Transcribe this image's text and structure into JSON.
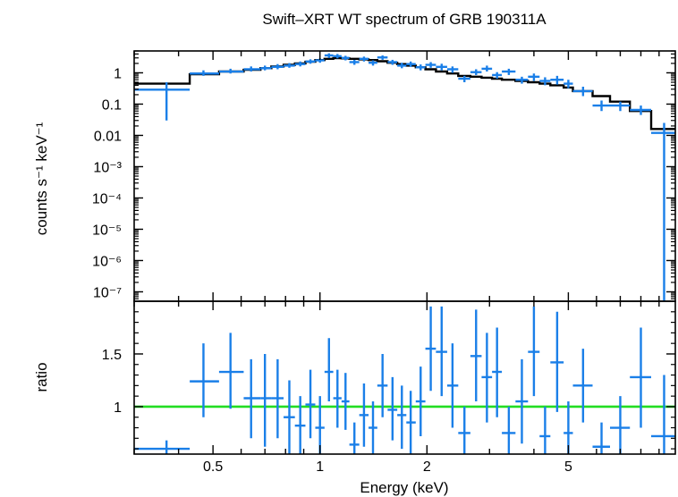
{
  "chart_data": [
    {
      "type": "scatter",
      "title": "Swift–XRT WT spectrum of GRB 190311A",
      "xlabel": "",
      "ylabel": "counts s⁻¹ keV⁻¹",
      "xscale": "log",
      "yscale": "log",
      "xlim": [
        0.3,
        10
      ],
      "ylim": [
        5e-08,
        5
      ],
      "grid": false,
      "y_ticks": [
        "1",
        "0.1",
        "0.01",
        "10⁻³",
        "10⁻⁴",
        "10⁻⁵",
        "10⁻⁶",
        "10⁻⁷"
      ],
      "colors": {
        "data": "#1a7fe8",
        "model": "#000000"
      },
      "series": [
        {
          "values": [
            {
              "x": 0.37,
              "xlo": 0.3,
              "xhi": 0.43,
              "y": 0.29,
              "ylo": 0.03,
              "yhi": 0.5
            },
            {
              "x": 0.47,
              "xlo": 0.43,
              "xhi": 0.52,
              "y": 0.95,
              "ylo": 0.8,
              "yhi": 1.2
            },
            {
              "x": 0.56,
              "xlo": 0.52,
              "xhi": 0.61,
              "y": 1.1,
              "ylo": 0.95,
              "yhi": 1.35
            },
            {
              "x": 0.64,
              "xlo": 0.61,
              "xhi": 0.68,
              "y": 1.3,
              "ylo": 1.1,
              "yhi": 1.6
            },
            {
              "x": 0.7,
              "xlo": 0.68,
              "xhi": 0.73,
              "y": 1.4,
              "ylo": 1.2,
              "yhi": 1.7
            },
            {
              "x": 0.76,
              "xlo": 0.73,
              "xhi": 0.79,
              "y": 1.55,
              "ylo": 1.3,
              "yhi": 1.9
            },
            {
              "x": 0.82,
              "xlo": 0.79,
              "xhi": 0.85,
              "y": 1.7,
              "ylo": 1.45,
              "yhi": 2.05
            },
            {
              "x": 0.88,
              "xlo": 0.85,
              "xhi": 0.91,
              "y": 1.9,
              "ylo": 1.6,
              "yhi": 2.3
            },
            {
              "x": 0.94,
              "xlo": 0.91,
              "xhi": 0.97,
              "y": 2.3,
              "ylo": 1.95,
              "yhi": 2.7
            },
            {
              "x": 1.0,
              "xlo": 0.97,
              "xhi": 1.03,
              "y": 2.5,
              "ylo": 2.1,
              "yhi": 2.9
            },
            {
              "x": 1.06,
              "xlo": 1.03,
              "xhi": 1.09,
              "y": 3.6,
              "ylo": 3.0,
              "yhi": 4.2
            },
            {
              "x": 1.12,
              "xlo": 1.09,
              "xhi": 1.15,
              "y": 3.4,
              "ylo": 2.9,
              "yhi": 4.0
            },
            {
              "x": 1.18,
              "xlo": 1.15,
              "xhi": 1.21,
              "y": 3.0,
              "ylo": 2.5,
              "yhi": 3.5
            },
            {
              "x": 1.25,
              "xlo": 1.21,
              "xhi": 1.29,
              "y": 2.2,
              "ylo": 1.8,
              "yhi": 2.6
            },
            {
              "x": 1.33,
              "xlo": 1.29,
              "xhi": 1.37,
              "y": 2.8,
              "ylo": 2.3,
              "yhi": 3.3
            },
            {
              "x": 1.41,
              "xlo": 1.37,
              "xhi": 1.45,
              "y": 2.1,
              "ylo": 1.7,
              "yhi": 2.5
            },
            {
              "x": 1.5,
              "xlo": 1.45,
              "xhi": 1.55,
              "y": 3.1,
              "ylo": 2.6,
              "yhi": 3.6
            },
            {
              "x": 1.6,
              "xlo": 1.55,
              "xhi": 1.65,
              "y": 2.2,
              "ylo": 1.8,
              "yhi": 2.6
            },
            {
              "x": 1.7,
              "xlo": 1.65,
              "xhi": 1.75,
              "y": 1.7,
              "ylo": 1.4,
              "yhi": 2.1
            },
            {
              "x": 1.8,
              "xlo": 1.75,
              "xhi": 1.86,
              "y": 1.9,
              "ylo": 1.55,
              "yhi": 2.3
            },
            {
              "x": 1.92,
              "xlo": 1.86,
              "xhi": 1.98,
              "y": 1.5,
              "ylo": 1.2,
              "yhi": 1.85
            },
            {
              "x": 2.05,
              "xlo": 1.98,
              "xhi": 2.12,
              "y": 1.8,
              "ylo": 1.45,
              "yhi": 2.2
            },
            {
              "x": 2.2,
              "xlo": 2.12,
              "xhi": 2.28,
              "y": 1.55,
              "ylo": 1.2,
              "yhi": 1.95
            },
            {
              "x": 2.36,
              "xlo": 2.28,
              "xhi": 2.45,
              "y": 1.3,
              "ylo": 1.0,
              "yhi": 1.6
            },
            {
              "x": 2.55,
              "xlo": 2.45,
              "xhi": 2.65,
              "y": 0.65,
              "ylo": 0.5,
              "yhi": 0.8
            },
            {
              "x": 2.75,
              "xlo": 2.65,
              "xhi": 2.85,
              "y": 1.05,
              "ylo": 0.85,
              "yhi": 1.3
            },
            {
              "x": 2.95,
              "xlo": 2.85,
              "xhi": 3.05,
              "y": 1.35,
              "ylo": 1.1,
              "yhi": 1.7
            },
            {
              "x": 3.15,
              "xlo": 3.05,
              "xhi": 3.25,
              "y": 0.85,
              "ylo": 0.65,
              "yhi": 1.05
            },
            {
              "x": 3.4,
              "xlo": 3.25,
              "xhi": 3.55,
              "y": 1.1,
              "ylo": 0.85,
              "yhi": 1.35
            },
            {
              "x": 3.7,
              "xlo": 3.55,
              "xhi": 3.85,
              "y": 0.6,
              "ylo": 0.45,
              "yhi": 0.75
            },
            {
              "x": 4.0,
              "xlo": 3.85,
              "xhi": 4.15,
              "y": 0.75,
              "ylo": 0.55,
              "yhi": 0.95
            },
            {
              "x": 4.3,
              "xlo": 4.15,
              "xhi": 4.45,
              "y": 0.55,
              "ylo": 0.4,
              "yhi": 0.72
            },
            {
              "x": 4.65,
              "xlo": 4.45,
              "xhi": 4.85,
              "y": 0.6,
              "ylo": 0.42,
              "yhi": 0.8
            },
            {
              "x": 5.0,
              "xlo": 4.85,
              "xhi": 5.15,
              "y": 0.45,
              "ylo": 0.32,
              "yhi": 0.6
            },
            {
              "x": 5.5,
              "xlo": 5.15,
              "xhi": 5.85,
              "y": 0.26,
              "ylo": 0.18,
              "yhi": 0.36
            },
            {
              "x": 6.2,
              "xlo": 5.85,
              "xhi": 6.55,
              "y": 0.09,
              "ylo": 0.06,
              "yhi": 0.13
            },
            {
              "x": 7.0,
              "xlo": 6.55,
              "xhi": 7.45,
              "y": 0.09,
              "ylo": 0.06,
              "yhi": 0.12
            },
            {
              "x": 8.0,
              "xlo": 7.45,
              "xhi": 8.55,
              "y": 0.065,
              "ylo": 0.045,
              "yhi": 0.09
            },
            {
              "x": 9.3,
              "xlo": 8.55,
              "xhi": 10.0,
              "y": 0.012,
              "ylo": 5e-08,
              "yhi": 0.025
            }
          ]
        },
        {
          "type": "step",
          "values": [
            {
              "x0": 0.3,
              "x1": 0.43,
              "y": 0.45
            },
            {
              "x0": 0.43,
              "x1": 0.52,
              "y": 0.9
            },
            {
              "x0": 0.52,
              "x1": 0.61,
              "y": 1.1
            },
            {
              "x0": 0.61,
              "x1": 0.68,
              "y": 1.25
            },
            {
              "x0": 0.68,
              "x1": 0.73,
              "y": 1.4
            },
            {
              "x0": 0.73,
              "x1": 0.79,
              "y": 1.6
            },
            {
              "x0": 0.79,
              "x1": 0.85,
              "y": 1.8
            },
            {
              "x0": 0.85,
              "x1": 0.91,
              "y": 2.0
            },
            {
              "x0": 0.91,
              "x1": 0.97,
              "y": 2.25
            },
            {
              "x0": 0.97,
              "x1": 1.03,
              "y": 2.55
            },
            {
              "x0": 1.03,
              "x1": 1.09,
              "y": 2.8
            },
            {
              "x0": 1.09,
              "x1": 1.15,
              "y": 2.95
            },
            {
              "x0": 1.15,
              "x1": 1.21,
              "y": 2.9
            },
            {
              "x0": 1.21,
              "x1": 1.29,
              "y": 2.8
            },
            {
              "x0": 1.29,
              "x1": 1.37,
              "y": 2.7
            },
            {
              "x0": 1.37,
              "x1": 1.45,
              "y": 2.55
            },
            {
              "x0": 1.45,
              "x1": 1.55,
              "y": 2.35
            },
            {
              "x0": 1.55,
              "x1": 1.65,
              "y": 2.1
            },
            {
              "x0": 1.65,
              "x1": 1.75,
              "y": 1.9
            },
            {
              "x0": 1.75,
              "x1": 1.86,
              "y": 1.7
            },
            {
              "x0": 1.86,
              "x1": 1.98,
              "y": 1.5
            },
            {
              "x0": 1.98,
              "x1": 2.12,
              "y": 1.3
            },
            {
              "x0": 2.12,
              "x1": 2.28,
              "y": 1.1
            },
            {
              "x0": 2.28,
              "x1": 2.45,
              "y": 0.95
            },
            {
              "x0": 2.45,
              "x1": 2.65,
              "y": 0.8
            },
            {
              "x0": 2.65,
              "x1": 2.85,
              "y": 0.75
            },
            {
              "x0": 2.85,
              "x1": 3.05,
              "y": 0.7
            },
            {
              "x0": 3.05,
              "x1": 3.25,
              "y": 0.65
            },
            {
              "x0": 3.25,
              "x1": 3.55,
              "y": 0.6
            },
            {
              "x0": 3.55,
              "x1": 3.85,
              "y": 0.55
            },
            {
              "x0": 3.85,
              "x1": 4.15,
              "y": 0.5
            },
            {
              "x0": 4.15,
              "x1": 4.45,
              "y": 0.45
            },
            {
              "x0": 4.45,
              "x1": 4.85,
              "y": 0.4
            },
            {
              "x0": 4.85,
              "x1": 5.15,
              "y": 0.34
            },
            {
              "x0": 5.15,
              "x1": 5.85,
              "y": 0.26
            },
            {
              "x0": 5.85,
              "x1": 6.55,
              "y": 0.18
            },
            {
              "x0": 6.55,
              "x1": 7.45,
              "y": 0.12
            },
            {
              "x0": 7.45,
              "x1": 8.55,
              "y": 0.06
            },
            {
              "x0": 8.55,
              "x1": 10.0,
              "y": 0.016
            }
          ]
        }
      ]
    },
    {
      "type": "scatter",
      "title": "",
      "xlabel": "Energy (keV)",
      "ylabel": "ratio",
      "xscale": "log",
      "yscale": "linear",
      "xlim": [
        0.3,
        10
      ],
      "ylim": [
        0.55,
        2.0
      ],
      "grid": false,
      "x_ticks": [
        "0.5",
        "1",
        "2",
        "5"
      ],
      "y_ticks": [
        "1",
        "1.5"
      ],
      "reference_line": 1,
      "colors": {
        "data": "#1a7fe8",
        "reference": "#22dd22"
      },
      "series": [
        {
          "values": [
            {
              "x": 0.37,
              "xlo": 0.3,
              "xhi": 0.43,
              "y": 0.6,
              "ylo": 0.55,
              "yhi": 0.68
            },
            {
              "x": 0.47,
              "xlo": 0.43,
              "xhi": 0.52,
              "y": 1.24,
              "ylo": 0.9,
              "yhi": 1.6
            },
            {
              "x": 0.56,
              "xlo": 0.52,
              "xhi": 0.61,
              "y": 1.33,
              "ylo": 0.98,
              "yhi": 1.7
            },
            {
              "x": 0.64,
              "xlo": 0.61,
              "xhi": 0.68,
              "y": 1.08,
              "ylo": 0.7,
              "yhi": 1.45
            },
            {
              "x": 0.7,
              "xlo": 0.68,
              "xhi": 0.73,
              "y": 1.08,
              "ylo": 0.62,
              "yhi": 1.5
            },
            {
              "x": 0.76,
              "xlo": 0.73,
              "xhi": 0.79,
              "y": 1.08,
              "ylo": 0.7,
              "yhi": 1.45
            },
            {
              "x": 0.82,
              "xlo": 0.79,
              "xhi": 0.85,
              "y": 0.9,
              "ylo": 0.55,
              "yhi": 1.25
            },
            {
              "x": 0.88,
              "xlo": 0.85,
              "xhi": 0.91,
              "y": 0.82,
              "ylo": 0.55,
              "yhi": 1.1
            },
            {
              "x": 0.94,
              "xlo": 0.91,
              "xhi": 0.97,
              "y": 1.02,
              "ylo": 0.7,
              "yhi": 1.35
            },
            {
              "x": 1.0,
              "xlo": 0.97,
              "xhi": 1.03,
              "y": 0.8,
              "ylo": 0.55,
              "yhi": 1.1
            },
            {
              "x": 1.06,
              "xlo": 1.03,
              "xhi": 1.09,
              "y": 1.33,
              "ylo": 1.05,
              "yhi": 1.65
            },
            {
              "x": 1.12,
              "xlo": 1.09,
              "xhi": 1.15,
              "y": 1.08,
              "ylo": 0.8,
              "yhi": 1.35
            },
            {
              "x": 1.18,
              "xlo": 1.15,
              "xhi": 1.21,
              "y": 1.05,
              "ylo": 0.78,
              "yhi": 1.32
            },
            {
              "x": 1.25,
              "xlo": 1.21,
              "xhi": 1.29,
              "y": 0.64,
              "ylo": 0.55,
              "yhi": 0.85
            },
            {
              "x": 1.33,
              "xlo": 1.29,
              "xhi": 1.37,
              "y": 0.92,
              "ylo": 0.62,
              "yhi": 1.22
            },
            {
              "x": 1.41,
              "xlo": 1.37,
              "xhi": 1.45,
              "y": 0.8,
              "ylo": 0.55,
              "yhi": 1.05
            },
            {
              "x": 1.5,
              "xlo": 1.45,
              "xhi": 1.55,
              "y": 1.2,
              "ylo": 0.9,
              "yhi": 1.5
            },
            {
              "x": 1.6,
              "xlo": 1.55,
              "xhi": 1.65,
              "y": 0.97,
              "ylo": 0.68,
              "yhi": 1.28
            },
            {
              "x": 1.7,
              "xlo": 1.65,
              "xhi": 1.75,
              "y": 0.92,
              "ylo": 0.6,
              "yhi": 1.2
            },
            {
              "x": 1.8,
              "xlo": 1.75,
              "xhi": 1.86,
              "y": 0.85,
              "ylo": 0.55,
              "yhi": 1.15
            },
            {
              "x": 1.92,
              "xlo": 1.86,
              "xhi": 1.98,
              "y": 1.05,
              "ylo": 0.72,
              "yhi": 1.38
            },
            {
              "x": 2.05,
              "xlo": 1.98,
              "xhi": 2.12,
              "y": 1.55,
              "ylo": 1.15,
              "yhi": 1.95
            },
            {
              "x": 2.2,
              "xlo": 2.12,
              "xhi": 2.28,
              "y": 1.52,
              "ylo": 1.1,
              "yhi": 1.95
            },
            {
              "x": 2.36,
              "xlo": 2.28,
              "xhi": 2.45,
              "y": 1.2,
              "ylo": 0.8,
              "yhi": 1.6
            },
            {
              "x": 2.55,
              "xlo": 2.45,
              "xhi": 2.65,
              "y": 0.75,
              "ylo": 0.55,
              "yhi": 1.0
            },
            {
              "x": 2.75,
              "xlo": 2.65,
              "xhi": 2.85,
              "y": 1.48,
              "ylo": 1.05,
              "yhi": 1.92
            },
            {
              "x": 2.95,
              "xlo": 2.85,
              "xhi": 3.05,
              "y": 1.28,
              "ylo": 0.85,
              "yhi": 1.7
            },
            {
              "x": 3.15,
              "xlo": 3.05,
              "xhi": 3.25,
              "y": 1.33,
              "ylo": 0.9,
              "yhi": 1.75
            },
            {
              "x": 3.4,
              "xlo": 3.25,
              "xhi": 3.55,
              "y": 0.75,
              "ylo": 0.55,
              "yhi": 1.0
            },
            {
              "x": 3.7,
              "xlo": 3.55,
              "xhi": 3.85,
              "y": 1.05,
              "ylo": 0.65,
              "yhi": 1.45
            },
            {
              "x": 4.0,
              "xlo": 3.85,
              "xhi": 4.15,
              "y": 1.52,
              "ylo": 1.1,
              "yhi": 1.95
            },
            {
              "x": 4.3,
              "xlo": 4.15,
              "xhi": 4.45,
              "y": 0.72,
              "ylo": 0.55,
              "yhi": 1.0
            },
            {
              "x": 4.65,
              "xlo": 4.45,
              "xhi": 4.85,
              "y": 1.42,
              "ylo": 0.95,
              "yhi": 1.9
            },
            {
              "x": 5.0,
              "xlo": 4.85,
              "xhi": 5.15,
              "y": 0.75,
              "ylo": 0.55,
              "yhi": 1.05
            },
            {
              "x": 5.5,
              "xlo": 5.15,
              "xhi": 5.85,
              "y": 1.2,
              "ylo": 0.85,
              "yhi": 1.55
            },
            {
              "x": 6.2,
              "xlo": 5.85,
              "xhi": 6.55,
              "y": 0.62,
              "ylo": 0.55,
              "yhi": 0.85
            },
            {
              "x": 7.0,
              "xlo": 6.55,
              "xhi": 7.45,
              "y": 0.8,
              "ylo": 0.55,
              "yhi": 1.1
            },
            {
              "x": 8.0,
              "xlo": 7.45,
              "xhi": 8.55,
              "y": 1.28,
              "ylo": 0.8,
              "yhi": 1.75
            },
            {
              "x": 9.3,
              "xlo": 8.55,
              "xhi": 10.0,
              "y": 0.72,
              "ylo": 0.55,
              "yhi": 1.3
            }
          ]
        }
      ]
    }
  ]
}
